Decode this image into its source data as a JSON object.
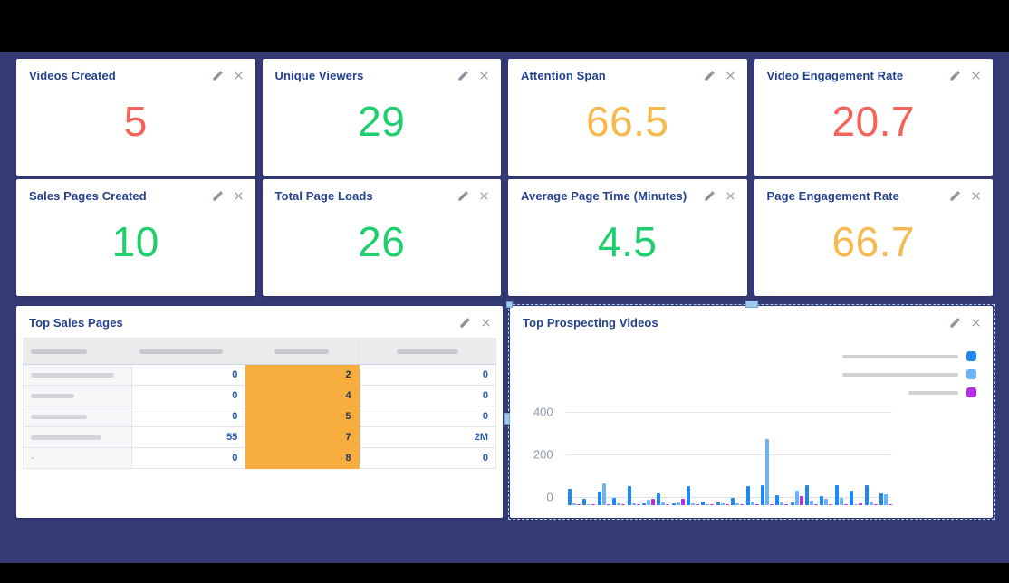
{
  "theme": {
    "background": "#333A75",
    "letterbox": "#000000",
    "panel": "#FFFFFF",
    "title_color": "#24418E",
    "icon_color": "#8B909B",
    "value_colors": {
      "red": "#F4645C",
      "green": "#1FCE6E",
      "amber": "#F6B94F"
    },
    "table_highlight": "#F7AE3F",
    "table_number_color": "#2A5CAD",
    "selection_color": "#A9CDEC"
  },
  "cards": [
    {
      "title": "Videos Created",
      "value": "5",
      "color": "red"
    },
    {
      "title": "Unique Viewers",
      "value": "29",
      "color": "green"
    },
    {
      "title": "Attention Span",
      "value": "66.5",
      "color": "amber"
    },
    {
      "title": "Video Engagement Rate",
      "value": "20.7",
      "color": "red"
    },
    {
      "title": "Sales Pages Created",
      "value": "10",
      "color": "green"
    },
    {
      "title": "Total Page Loads",
      "value": "26",
      "color": "green"
    },
    {
      "title": "Average Page Time (Minutes)",
      "value": "4.5",
      "color": "green"
    },
    {
      "title": "Page Engagement Rate",
      "value": "66.7",
      "color": "amber"
    }
  ],
  "card_icons": {
    "edit": "pencil-icon",
    "close": "close-icon"
  },
  "table_panel": {
    "title": "Top Sales Pages",
    "note": "row and column labels are redacted placeholder bars",
    "rows": [
      {
        "label": "",
        "values": [
          "0",
          "2",
          "0"
        ]
      },
      {
        "label": "",
        "values": [
          "0",
          "4",
          "0"
        ]
      },
      {
        "label": "",
        "values": [
          "0",
          "5",
          "0"
        ]
      },
      {
        "label": "",
        "values": [
          "55",
          "7",
          "2M"
        ]
      },
      {
        "label": "-",
        "values": [
          "0",
          "8",
          "0"
        ]
      }
    ]
  },
  "chart_panel": {
    "title": "Top Prospecting Videos"
  },
  "chart_data": {
    "type": "bar",
    "title": "Top Prospecting Videos",
    "xlabel": "",
    "ylabel": "",
    "ylim": [
      0,
      400
    ],
    "yticks": [
      "0",
      "200",
      "400"
    ],
    "grid": true,
    "legend_position": "top-right",
    "legend_note": "legend labels are redacted placeholder bars",
    "series": [
      {
        "name": "series-1",
        "color": "#1E87F0",
        "values": [
          78,
          28,
          62,
          36,
          88,
          10,
          55,
          10,
          88,
          15,
          12,
          35,
          88,
          92,
          48,
          12,
          92,
          42,
          92,
          68,
          92,
          55
        ]
      },
      {
        "name": "series-2",
        "color": "#6AB4F5",
        "values": [
          10,
          6,
          102,
          8,
          10,
          24,
          12,
          14,
          10,
          6,
          8,
          10,
          15,
          312,
          12,
          70,
          20,
          28,
          35,
          6,
          12,
          50
        ]
      },
      {
        "name": "series-3",
        "color": "#B62FE3",
        "values": [
          6,
          5,
          6,
          5,
          5,
          30,
          5,
          28,
          5,
          4,
          4,
          5,
          5,
          6,
          6,
          42,
          5,
          5,
          5,
          10,
          5,
          5
        ]
      }
    ]
  }
}
